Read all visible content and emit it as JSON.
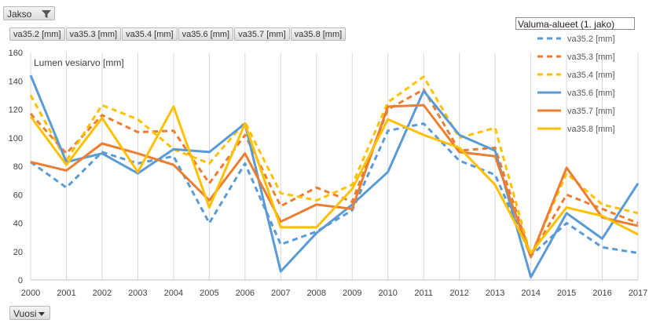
{
  "filters": {
    "jakso_label": "Jakso",
    "vuosi_label": "Vuosi",
    "legend_title": "Valuma-alueet (1. jako)",
    "series_buttons": [
      "va35.2 [mm]",
      "va35.3 [mm]",
      "va35.4 [mm]",
      "va35.6 [mm]",
      "va35.7 [mm]",
      "va35.8 [mm]"
    ]
  },
  "chart_data": {
    "type": "line",
    "title": "Lumen vesiarvo [mm]",
    "xlabel": "",
    "ylabel": "",
    "x": [
      "2000",
      "2001",
      "2002",
      "2003",
      "2004",
      "2005",
      "2006",
      "2007",
      "2008",
      "2009",
      "2010",
      "2011",
      "2012",
      "2013",
      "2014",
      "2015",
      "2016",
      "2017"
    ],
    "ylim": [
      0,
      160
    ],
    "yticks": [
      0,
      20,
      40,
      60,
      80,
      100,
      120,
      140,
      160
    ],
    "grid": "vertical",
    "legend": "top-right",
    "series": [
      {
        "name": "va35.2 [mm]",
        "color": "#5b9bd5",
        "dash": true,
        "values": [
          83,
          65,
          90,
          82,
          87,
          40,
          82,
          25,
          34,
          49,
          105,
          110,
          84,
          74,
          17,
          40,
          23,
          19
        ]
      },
      {
        "name": "va35.3 [mm]",
        "color": "#ed7d31",
        "dash": true,
        "values": [
          117,
          89,
          116,
          104,
          105,
          68,
          102,
          52,
          65,
          55,
          120,
          134,
          91,
          93,
          17,
          60,
          50,
          40
        ]
      },
      {
        "name": "va35.4 [mm]",
        "color": "#ffc000",
        "dash": true,
        "values": [
          130,
          84,
          123,
          113,
          92,
          82,
          111,
          61,
          56,
          67,
          125,
          143,
          100,
          107,
          17,
          75,
          53,
          47
        ]
      },
      {
        "name": "va35.6 [mm]",
        "color": "#5b9bd5",
        "dash": false,
        "values": [
          144,
          83,
          89,
          75,
          92,
          90,
          110,
          6,
          33,
          53,
          76,
          133,
          102,
          91,
          2,
          47,
          29,
          68
        ]
      },
      {
        "name": "va35.7 [mm]",
        "color": "#ed7d31",
        "dash": false,
        "values": [
          83,
          77,
          96,
          89,
          81,
          56,
          89,
          41,
          53,
          50,
          122,
          123,
          90,
          87,
          16,
          79,
          44,
          38
        ]
      },
      {
        "name": "va35.8 [mm]",
        "color": "#ffc000",
        "dash": false,
        "values": [
          115,
          81,
          114,
          76,
          122,
          51,
          110,
          37,
          37,
          64,
          113,
          102,
          93,
          67,
          19,
          51,
          45,
          32
        ]
      }
    ]
  }
}
